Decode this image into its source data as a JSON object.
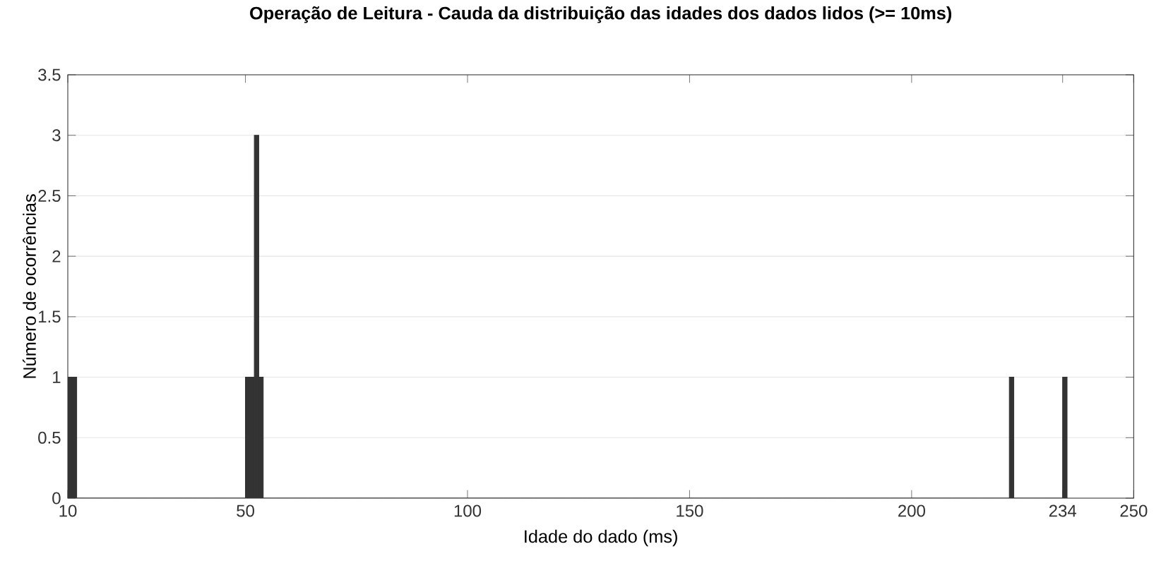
{
  "chart_data": {
    "type": "histogram",
    "title": "Operação de Leitura - Cauda da distribuição das idades dos dados lidos (>= 10ms)",
    "xlabel": "Idade do dado (ms)",
    "ylabel": "Número de ocorrências",
    "color": "#333333",
    "bins": [
      10,
      11,
      12,
      13,
      14,
      15,
      16,
      17,
      18,
      19,
      20,
      21,
      22,
      23,
      24,
      25,
      26,
      27,
      28,
      29,
      30,
      31,
      32,
      33,
      34,
      35,
      36,
      37,
      38,
      39,
      40,
      41,
      42,
      43,
      44,
      45,
      46,
      47,
      48,
      49,
      50,
      51,
      52,
      53,
      54,
      55,
      56,
      57,
      58,
      59,
      60,
      61,
      62,
      63,
      64,
      65,
      66,
      67,
      68,
      69,
      70,
      71,
      72,
      73,
      74,
      75,
      76,
      77,
      78,
      79,
      80,
      81,
      82,
      83,
      84,
      85,
      86,
      87,
      88,
      89,
      90,
      91,
      92,
      93,
      94,
      95,
      96,
      97,
      98,
      99,
      100,
      101,
      102,
      103,
      104,
      105,
      106,
      107,
      108,
      109,
      110,
      111,
      112,
      113,
      114,
      115,
      116,
      117,
      118,
      119,
      120,
      121,
      122,
      123,
      124,
      125,
      126,
      127,
      128,
      129,
      130,
      131,
      132,
      133,
      134,
      135,
      136,
      137,
      138,
      139,
      140,
      141,
      142,
      143,
      144,
      145,
      146,
      147,
      148,
      149,
      150,
      151,
      152,
      153,
      154,
      155,
      156,
      157,
      158,
      159,
      160,
      161,
      162,
      163,
      164,
      165,
      166,
      167,
      168,
      169,
      170,
      171,
      172,
      173,
      174,
      175,
      176,
      177,
      178,
      179,
      180,
      181,
      182,
      183,
      184,
      185,
      186,
      187,
      188,
      189,
      190,
      191,
      192,
      193,
      194,
      195,
      196,
      197,
      198,
      199,
      200,
      201,
      202,
      203,
      204,
      205,
      206,
      207,
      208,
      209,
      210,
      211,
      212,
      213,
      214,
      215,
      216,
      217,
      218,
      219,
      220,
      221,
      222,
      223,
      224,
      225,
      226,
      227,
      228,
      229,
      230,
      231,
      232,
      233,
      234,
      235
    ],
    "values": [
      1,
      1,
      0,
      0,
      0,
      0,
      0,
      0,
      0,
      0,
      0,
      0,
      0,
      0,
      0,
      0,
      0,
      0,
      0,
      0,
      0,
      0,
      0,
      0,
      0,
      0,
      0,
      0,
      0,
      0,
      0,
      0,
      0,
      0,
      0,
      0,
      0,
      0,
      0,
      0,
      1,
      1,
      3,
      1,
      0,
      0,
      0,
      0,
      0,
      0,
      0,
      0,
      0,
      0,
      0,
      0,
      0,
      0,
      0,
      0,
      0,
      0,
      0,
      0,
      0,
      0,
      0,
      0,
      0,
      0,
      0,
      0,
      0,
      0,
      0,
      0,
      0,
      0,
      0,
      0,
      0,
      0,
      0,
      0,
      0,
      0,
      0,
      0,
      0,
      0,
      0,
      0,
      0,
      0,
      0,
      0,
      0,
      0,
      0,
      0,
      0,
      0,
      0,
      0,
      0,
      0,
      0,
      0,
      0,
      0,
      0,
      0,
      0,
      0,
      0,
      0,
      0,
      0,
      0,
      0,
      0,
      0,
      0,
      0,
      0,
      0,
      0,
      0,
      0,
      0,
      0,
      0,
      0,
      0,
      0,
      0,
      0,
      0,
      0,
      0,
      0,
      0,
      0,
      0,
      0,
      0,
      0,
      0,
      0,
      0,
      0,
      0,
      0,
      0,
      0,
      0,
      0,
      0,
      0,
      0,
      0,
      0,
      0,
      0,
      0,
      0,
      0,
      0,
      0,
      0,
      0,
      0,
      0,
      0,
      0,
      0,
      0,
      0,
      0,
      0,
      0,
      0,
      0,
      0,
      0,
      0,
      0,
      0,
      0,
      0,
      0,
      0,
      0,
      0,
      0,
      0,
      0,
      0,
      0,
      0,
      0,
      0,
      0,
      0,
      0,
      0,
      0,
      0,
      0,
      0,
      0,
      0,
      1,
      0,
      0,
      0,
      0,
      0,
      0,
      0,
      0,
      0,
      0,
      0,
      1
    ],
    "xlim": [
      10,
      250
    ],
    "xticks": [
      10,
      50,
      100,
      150,
      200,
      234,
      250
    ],
    "ylim": [
      0,
      3.5
    ],
    "yticks": [
      0,
      0.5,
      1,
      1.5,
      2,
      2.5,
      3,
      3.5
    ],
    "grid": "y"
  }
}
